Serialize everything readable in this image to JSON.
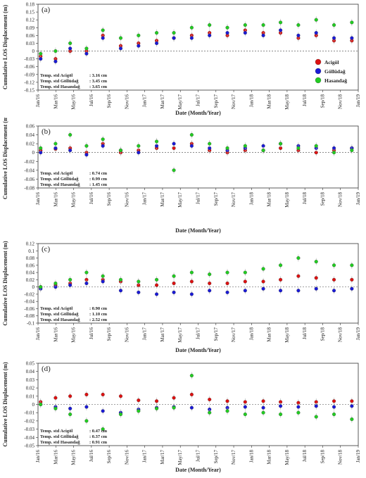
{
  "chart_data": [
    {
      "type": "scatter",
      "panel_label": "(a)",
      "ylabel": "Cumulative LOS Displacement (m)",
      "xlabel": "Date (Month/Year)",
      "ylim": [
        -0.15,
        0.18
      ],
      "yticks": [
        "0.18",
        "0.15",
        "0.12",
        "0.09",
        "0.06",
        "0.03",
        "0",
        "-0.03",
        "-0.06",
        "-0.09",
        "-0.12",
        "-0.15"
      ],
      "yticks_values": [
        0.18,
        0.15,
        0.12,
        0.09,
        0.06,
        0.03,
        0,
        -0.03,
        -0.06,
        -0.09,
        -0.12,
        -0.15
      ],
      "xticks": [
        "Jan/16",
        "Mar/16",
        "May/16",
        "Jul/16",
        "Sep/16",
        "Nov/16",
        "Jan/17",
        "Mar/17",
        "May/17",
        "Jul/17",
        "Sep/17",
        "Nov/17",
        "Jan/18",
        "Mar/18",
        "May/18",
        "Jul/18",
        "Sep/18",
        "Nov/18",
        "Jan/19"
      ],
      "stats": [
        {
          "label": "Temp. std Acigöl",
          "value": ": 3.16 cm"
        },
        {
          "label": "Temp. std Göllüdağ",
          "value": ": 3.45 cm"
        },
        {
          "label": "Temp. std Hasandağ",
          "value": ": 3.65 cm"
        }
      ],
      "legend": [
        {
          "name": "Acigöl",
          "color": "#dd1111"
        },
        {
          "name": "Göllüdağ",
          "color": "#1a1ad6"
        },
        {
          "name": "Hasandağ",
          "color": "#22cc22"
        }
      ],
      "legend_position": "right",
      "series": [
        {
          "name": "Acigöl",
          "color": "#dd1111",
          "x": [
            "2016-01-10",
            "2016-03-01",
            "2016-04-20",
            "2016-06-15",
            "2016-08-10",
            "2016-10-10",
            "2016-12-10",
            "2017-02-10",
            "2017-04-10",
            "2017-06-10",
            "2017-08-10",
            "2017-10-10",
            "2017-12-10",
            "2018-02-10",
            "2018-04-10",
            "2018-06-10",
            "2018-08-10",
            "2018-10-10",
            "2018-12-10"
          ],
          "y": [
            -0.02,
            -0.03,
            0.0,
            0.0,
            0.06,
            0.02,
            0.03,
            0.04,
            0.05,
            0.06,
            0.07,
            0.06,
            0.08,
            0.07,
            0.07,
            0.05,
            0.06,
            0.04,
            0.04
          ]
        },
        {
          "name": "Göllüdağ",
          "color": "#1a1ad6",
          "x": [
            "2016-01-10",
            "2016-03-01",
            "2016-04-20",
            "2016-06-15",
            "2016-08-10",
            "2016-10-10",
            "2016-12-10",
            "2017-02-10",
            "2017-04-10",
            "2017-06-10",
            "2017-08-10",
            "2017-10-10",
            "2017-12-10",
            "2018-02-10",
            "2018-04-10",
            "2018-06-10",
            "2018-08-10",
            "2018-10-10",
            "2018-12-10"
          ],
          "y": [
            -0.03,
            -0.04,
            0.01,
            -0.01,
            0.05,
            0.01,
            0.02,
            0.03,
            0.05,
            0.05,
            0.06,
            0.07,
            0.07,
            0.06,
            0.08,
            0.06,
            0.07,
            0.05,
            0.05
          ]
        },
        {
          "name": "Hasandağ",
          "color": "#22cc22",
          "x": [
            "2016-01-10",
            "2016-03-01",
            "2016-04-20",
            "2016-06-15",
            "2016-08-10",
            "2016-10-10",
            "2016-12-10",
            "2017-02-10",
            "2017-04-10",
            "2017-06-10",
            "2017-08-10",
            "2017-10-10",
            "2017-12-10",
            "2018-02-10",
            "2018-04-10",
            "2018-06-10",
            "2018-08-10",
            "2018-10-10",
            "2018-12-10"
          ],
          "y": [
            -0.01,
            0.0,
            0.03,
            0.01,
            0.08,
            0.05,
            0.06,
            0.07,
            0.07,
            0.09,
            0.1,
            0.09,
            0.1,
            0.1,
            0.11,
            0.1,
            0.12,
            0.1,
            0.11
          ]
        }
      ]
    },
    {
      "type": "scatter",
      "panel_label": "(b)",
      "ylabel": "Cumulative LOS Displacement (m)",
      "xlabel": "Date (Month/Year)",
      "ylim": [
        -0.08,
        0.06
      ],
      "yticks": [
        "0.06",
        "0.04",
        "0.02",
        "0",
        "-0.02",
        "-0.04",
        "-0.06",
        "-0.08"
      ],
      "yticks_values": [
        0.06,
        0.04,
        0.02,
        0,
        -0.02,
        -0.04,
        -0.06,
        -0.08
      ],
      "xticks": [
        "Jan/16",
        "Mar/16",
        "May/16",
        "Jul/16",
        "Sep/16",
        "Nov/16",
        "Jan/17",
        "Mar/17",
        "May/17",
        "Jul/17",
        "Sep/17",
        "Nov/17",
        "Jan/18",
        "Mar/18",
        "May/18",
        "Jul/18",
        "Sep/18",
        "Nov/18",
        "Jan/19"
      ],
      "stats": [
        {
          "label": "Temp. std Acigöl",
          "value": ": 0.74 cm"
        },
        {
          "label": "Temp. std Göllüdağ",
          "value": ": 0.99 cm"
        },
        {
          "label": "Temp. std Hasandağ",
          "value": ": 1.45 cm"
        }
      ],
      "series": [
        {
          "name": "Acigöl",
          "color": "#dd1111",
          "x": [
            "2016-01-10",
            "2016-03-01",
            "2016-04-20",
            "2016-06-15",
            "2016-08-10",
            "2016-10-10",
            "2016-12-10",
            "2017-02-10",
            "2017-04-10",
            "2017-06-10",
            "2017-08-10",
            "2017-10-10",
            "2017-12-10",
            "2018-02-10",
            "2018-04-10",
            "2018-06-10",
            "2018-08-10",
            "2018-10-10",
            "2018-12-10"
          ],
          "y": [
            0.005,
            0.008,
            0.01,
            0.0,
            0.02,
            0.0,
            0.005,
            0.01,
            0.01,
            0.02,
            0.005,
            0.0,
            0.005,
            0.005,
            0.01,
            0.005,
            0.0,
            0.005,
            0.01
          ]
        },
        {
          "name": "Göllüdağ",
          "color": "#1a1ad6",
          "x": [
            "2016-01-10",
            "2016-03-01",
            "2016-04-20",
            "2016-06-15",
            "2016-08-10",
            "2016-10-10",
            "2016-12-10",
            "2017-02-10",
            "2017-04-10",
            "2017-06-10",
            "2017-08-10",
            "2017-10-10",
            "2017-12-10",
            "2018-02-10",
            "2018-04-10",
            "2018-06-10",
            "2018-08-10",
            "2018-10-10",
            "2018-12-10"
          ],
          "y": [
            0.0,
            0.01,
            0.005,
            -0.005,
            0.015,
            0.005,
            0.0,
            0.015,
            0.02,
            0.015,
            0.01,
            0.005,
            0.01,
            0.015,
            0.02,
            0.015,
            0.01,
            0.01,
            0.01
          ]
        },
        {
          "name": "Hasandağ",
          "color": "#22cc22",
          "x": [
            "2016-01-10",
            "2016-03-01",
            "2016-04-20",
            "2016-06-15",
            "2016-08-10",
            "2016-10-10",
            "2016-12-10",
            "2017-02-10",
            "2017-04-10",
            "2017-06-10",
            "2017-08-10",
            "2017-10-10",
            "2017-12-10",
            "2018-02-10",
            "2018-04-10",
            "2018-06-10",
            "2018-08-10",
            "2018-10-10",
            "2018-12-10"
          ],
          "y": [
            0.01,
            0.02,
            0.04,
            0.015,
            0.03,
            0.005,
            0.015,
            0.025,
            -0.04,
            0.04,
            0.02,
            0.01,
            0.015,
            0.005,
            0.02,
            0.01,
            0.015,
            0.0,
            0.005
          ]
        }
      ]
    },
    {
      "type": "scatter",
      "panel_label": "(c)",
      "ylabel": "Cumulative LOS Displacement (m)",
      "xlabel": "Date (Month/Year)",
      "ylim": [
        -0.1,
        0.12
      ],
      "yticks": [
        "0.12",
        "0.1",
        "0.08",
        "0.06",
        "0.04",
        "0.02",
        "0",
        "-0.02",
        "-0.04",
        "-0.06",
        "-0.08",
        "-0.1"
      ],
      "yticks_values": [
        0.12,
        0.1,
        0.08,
        0.06,
        0.04,
        0.02,
        0,
        -0.02,
        -0.04,
        -0.06,
        -0.08,
        -0.1
      ],
      "xticks": [
        "Jan/16",
        "Mar/16",
        "May/16",
        "Jul/16",
        "Sep/16",
        "Nov/16",
        "Jan/17",
        "Mar/17",
        "May/17",
        "Jul/17",
        "Sep/17",
        "Nov/17",
        "Jan/18",
        "Mar/18",
        "May/18",
        "Jul/18",
        "Sep/18",
        "Nov/18",
        "Jan/19"
      ],
      "stats": [
        {
          "label": "Temp. std Acigöl",
          "value": ": 0.90 cm"
        },
        {
          "label": "Temp. std Göllüdağ",
          "value": ": 1.10 cm"
        },
        {
          "label": "Temp. std Hasandağ",
          "value": ": 2.52 cm"
        }
      ],
      "series": [
        {
          "name": "Acigöl",
          "color": "#dd1111",
          "x": [
            "2016-01-10",
            "2016-03-01",
            "2016-04-20",
            "2016-06-15",
            "2016-08-10",
            "2016-10-10",
            "2016-12-10",
            "2017-02-10",
            "2017-04-10",
            "2017-06-10",
            "2017-08-10",
            "2017-10-10",
            "2017-12-10",
            "2018-02-10",
            "2018-04-10",
            "2018-06-10",
            "2018-08-10",
            "2018-10-10",
            "2018-12-10"
          ],
          "y": [
            0.0,
            0.005,
            0.01,
            0.02,
            0.02,
            0.015,
            0.005,
            0.005,
            0.01,
            0.015,
            0.01,
            0.01,
            0.015,
            0.015,
            0.02,
            0.03,
            0.025,
            0.02,
            0.02
          ]
        },
        {
          "name": "Göllüdağ",
          "color": "#1a1ad6",
          "x": [
            "2016-01-10",
            "2016-03-01",
            "2016-04-20",
            "2016-06-15",
            "2016-08-10",
            "2016-10-10",
            "2016-12-10",
            "2017-02-10",
            "2017-04-10",
            "2017-06-10",
            "2017-08-10",
            "2017-10-10",
            "2017-12-10",
            "2018-02-10",
            "2018-04-10",
            "2018-06-10",
            "2018-08-10",
            "2018-10-10",
            "2018-12-10"
          ],
          "y": [
            -0.005,
            0.0,
            0.005,
            0.01,
            0.015,
            -0.01,
            -0.015,
            -0.02,
            -0.015,
            -0.02,
            -0.01,
            -0.015,
            -0.01,
            -0.005,
            -0.01,
            -0.01,
            -0.005,
            -0.01,
            -0.005
          ]
        },
        {
          "name": "Hasandağ",
          "color": "#22cc22",
          "x": [
            "2016-01-10",
            "2016-03-01",
            "2016-04-20",
            "2016-06-15",
            "2016-08-10",
            "2016-10-10",
            "2016-12-10",
            "2017-02-10",
            "2017-04-10",
            "2017-06-10",
            "2017-08-10",
            "2017-10-10",
            "2017-12-10",
            "2018-02-10",
            "2018-04-10",
            "2018-06-10",
            "2018-08-10",
            "2018-10-10",
            "2018-12-10"
          ],
          "y": [
            0.0,
            0.01,
            0.02,
            0.04,
            0.03,
            0.02,
            0.015,
            0.02,
            0.03,
            0.04,
            0.035,
            0.04,
            0.04,
            0.05,
            0.06,
            0.08,
            0.07,
            0.06,
            0.06
          ]
        }
      ]
    },
    {
      "type": "scatter",
      "panel_label": "(d)",
      "ylabel": "Cumulative LOS Displacement (m)",
      "xlabel": "Date (Month/Year)",
      "ylim": [
        -0.05,
        0.05
      ],
      "yticks": [
        "0.05",
        "0.04",
        "0.03",
        "0.02",
        "0.01",
        "0",
        "-0.01",
        "-0.02",
        "-0.03",
        "-0.04",
        "-0.05"
      ],
      "yticks_values": [
        0.05,
        0.04,
        0.03,
        0.02,
        0.01,
        0,
        -0.01,
        -0.02,
        -0.03,
        -0.04,
        -0.05
      ],
      "xticks": [
        "Jan/16",
        "Mar/16",
        "May/16",
        "Jul/16",
        "Sep/16",
        "Nov/16",
        "Jan/17",
        "Mar/17",
        "May/17",
        "Jul/17",
        "Sep/17",
        "Nov/17",
        "Jan/18",
        "Mar/18",
        "May/18",
        "Jul/18",
        "Sep/18",
        "Nov/18",
        "Jan/19"
      ],
      "stats": [
        {
          "label": "Temp. std Acigöl",
          "value": ": 0.47 cm"
        },
        {
          "label": "Temp. std Göllüdağ",
          "value": ": 0.37 cm"
        },
        {
          "label": "Temp. std Hasandağ",
          "value": ": 0.91 cm"
        }
      ],
      "series": [
        {
          "name": "Acigöl",
          "color": "#dd1111",
          "x": [
            "2016-01-10",
            "2016-03-01",
            "2016-04-20",
            "2016-06-15",
            "2016-08-10",
            "2016-10-10",
            "2016-12-10",
            "2017-02-10",
            "2017-04-10",
            "2017-06-10",
            "2017-08-10",
            "2017-10-10",
            "2017-12-10",
            "2018-02-10",
            "2018-04-10",
            "2018-06-10",
            "2018-08-10",
            "2018-10-10",
            "2018-12-10"
          ],
          "y": [
            0.003,
            0.008,
            0.01,
            0.012,
            0.012,
            0.01,
            0.005,
            0.004,
            0.008,
            0.012,
            0.006,
            0.004,
            0.003,
            0.004,
            0.003,
            0.002,
            0.003,
            0.004,
            0.004
          ]
        },
        {
          "name": "Göllüdağ",
          "color": "#1a1ad6",
          "x": [
            "2016-01-10",
            "2016-03-01",
            "2016-04-20",
            "2016-06-15",
            "2016-08-10",
            "2016-10-10",
            "2016-12-10",
            "2017-02-10",
            "2017-04-10",
            "2017-06-10",
            "2017-08-10",
            "2017-10-10",
            "2017-12-10",
            "2018-02-10",
            "2018-04-10",
            "2018-06-10",
            "2018-08-10",
            "2018-10-10",
            "2018-12-10"
          ],
          "y": [
            0.0,
            -0.003,
            -0.005,
            -0.003,
            -0.008,
            -0.01,
            -0.006,
            -0.004,
            -0.003,
            -0.004,
            -0.006,
            -0.004,
            -0.003,
            -0.004,
            -0.002,
            -0.003,
            -0.002,
            -0.003,
            -0.002
          ]
        },
        {
          "name": "Hasandağ",
          "color": "#22cc22",
          "x": [
            "2016-01-10",
            "2016-03-01",
            "2016-04-20",
            "2016-06-15",
            "2016-08-10",
            "2016-10-10",
            "2016-12-10",
            "2017-02-10",
            "2017-04-10",
            "2017-06-10",
            "2017-08-10",
            "2017-10-10",
            "2017-12-10",
            "2018-02-10",
            "2018-04-10",
            "2018-06-10",
            "2018-08-10",
            "2018-10-10",
            "2018-12-10"
          ],
          "y": [
            0.0,
            -0.005,
            -0.012,
            -0.02,
            -0.03,
            -0.012,
            -0.008,
            -0.005,
            -0.004,
            0.035,
            -0.01,
            -0.008,
            -0.012,
            -0.01,
            -0.012,
            -0.01,
            -0.015,
            -0.012,
            -0.018
          ]
        }
      ]
    }
  ]
}
